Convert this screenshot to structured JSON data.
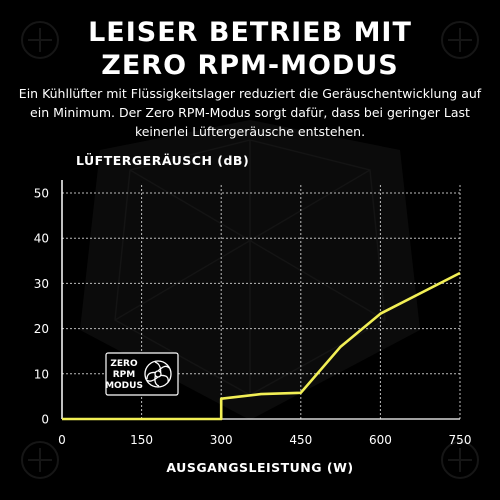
{
  "header": {
    "title_line1": "LEISER BETRIEB MIT",
    "title_line2": "ZERO RPM-MODUS",
    "description": "Ein Kühllüfter mit Flüssigkeitslager reduziert die Geräuschentwicklung auf ein Minimum. Der Zero RPM-Modus sorgt dafür, dass bei geringer Last keinerlei Lüftergeräusche entstehen."
  },
  "badge": {
    "line1": "ZERO",
    "line2": "RPM",
    "line3": "MODUS",
    "icon": "fan-icon"
  },
  "colors": {
    "accent": "#f2ef55",
    "background": "#000000",
    "text": "#ffffff"
  },
  "chart_data": {
    "type": "line",
    "title": "",
    "xlabel": "AUSGANGSLEISTUNG (W)",
    "ylabel": "LÜFTERGERÄUSCH (dB)",
    "xlim": [
      0,
      750
    ],
    "ylim": [
      0,
      50
    ],
    "xticks": [
      0,
      150,
      300,
      450,
      600,
      750
    ],
    "yticks": [
      0,
      10,
      20,
      30,
      40,
      50
    ],
    "grid": true,
    "series": [
      {
        "x": [
          0,
          300,
          300,
          375,
          450,
          525,
          600,
          750
        ],
        "y": [
          0,
          0,
          4.5,
          5.5,
          5.8,
          16,
          23.3,
          32.3
        ]
      }
    ]
  }
}
